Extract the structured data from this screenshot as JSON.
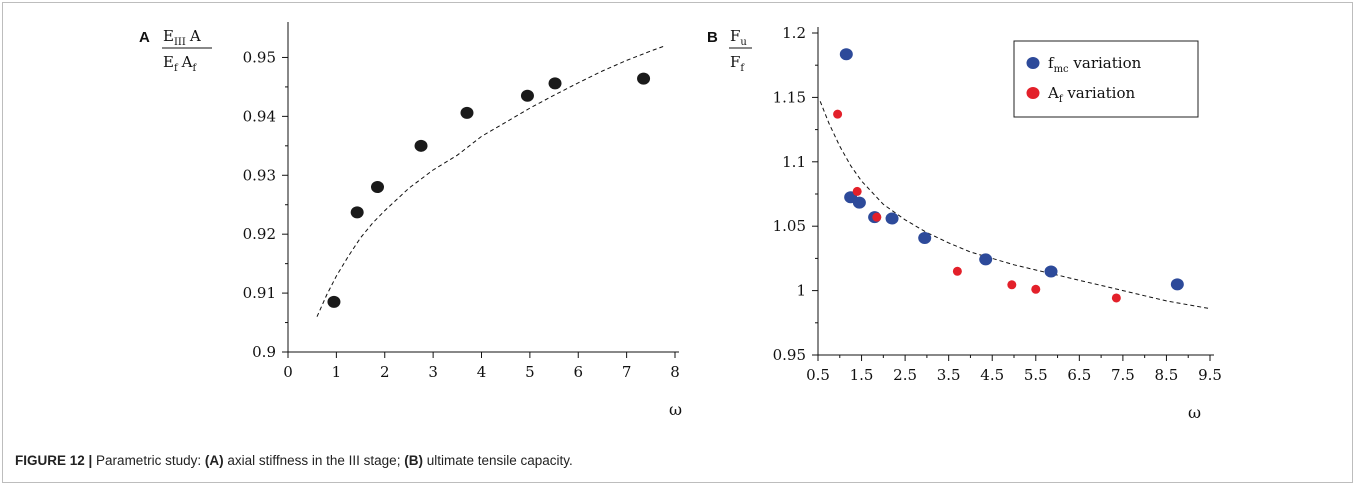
{
  "caption": {
    "label": "FIGURE 12 |",
    "intro": " Parametric study: ",
    "part_a_tag": "(A)",
    "part_a_text": " axial stiffness in the III stage; ",
    "part_b_tag": "(B)",
    "part_b_text": " ultimate tensile capacity."
  },
  "colors": {
    "black_marker": "#1a1a1a",
    "blue_marker": "#2d4a9a",
    "red_marker": "#e3202a"
  },
  "chart_data": [
    {
      "panel": "A",
      "type": "scatter",
      "xlabel": "ω",
      "ylabel": {
        "num_E": "E",
        "num_E_sub": "III",
        "num_A": "A",
        "den_E": "E",
        "den_E_sub": "f",
        "den_A": "A",
        "den_A_sub": "f"
      },
      "xlim": [
        0,
        8
      ],
      "ylim": [
        0.9,
        0.955
      ],
      "x_ticks": [
        "0",
        "1",
        "2",
        "3",
        "4",
        "5",
        "6",
        "7",
        "8"
      ],
      "y_ticks": [
        "0.9",
        "0.91",
        "0.92",
        "0.93",
        "0.94",
        "0.95"
      ],
      "grid": false,
      "series": [
        {
          "points": [
            {
              "x": 0.95,
              "y": 0.9085
            },
            {
              "x": 1.43,
              "y": 0.9237
            },
            {
              "x": 1.85,
              "y": 0.928
            },
            {
              "x": 2.75,
              "y": 0.935
            },
            {
              "x": 3.7,
              "y": 0.9406
            },
            {
              "x": 4.95,
              "y": 0.9435
            },
            {
              "x": 5.52,
              "y": 0.9456
            },
            {
              "x": 7.35,
              "y": 0.9464
            }
          ]
        }
      ],
      "trend": [
        {
          "x": 0.6,
          "y": 0.906
        },
        {
          "x": 0.8,
          "y": 0.9097
        },
        {
          "x": 1.0,
          "y": 0.9129
        },
        {
          "x": 1.25,
          "y": 0.9163
        },
        {
          "x": 1.5,
          "y": 0.9194
        },
        {
          "x": 1.75,
          "y": 0.9219
        },
        {
          "x": 2.0,
          "y": 0.924
        },
        {
          "x": 2.5,
          "y": 0.9278
        },
        {
          "x": 3.0,
          "y": 0.9309
        },
        {
          "x": 3.5,
          "y": 0.9334
        },
        {
          "x": 4.0,
          "y": 0.9366
        },
        {
          "x": 4.5,
          "y": 0.939
        },
        {
          "x": 5.0,
          "y": 0.9414
        },
        {
          "x": 5.5,
          "y": 0.9436
        },
        {
          "x": 6.0,
          "y": 0.9457
        },
        {
          "x": 6.5,
          "y": 0.9477
        },
        {
          "x": 7.0,
          "y": 0.9495
        },
        {
          "x": 7.5,
          "y": 0.9511
        },
        {
          "x": 7.8,
          "y": 0.952
        }
      ]
    },
    {
      "panel": "B",
      "type": "scatter",
      "xlabel": "ω",
      "ylabel": {
        "num": "F",
        "num_sub": "u",
        "den": "F",
        "den_sub": "f"
      },
      "xlim": [
        0.5,
        9.5
      ],
      "ylim": [
        0.95,
        1.2
      ],
      "x_ticks": [
        "0.5",
        "1.5",
        "2.5",
        "3.5",
        "4.5",
        "5.5",
        "6.5",
        "7.5",
        "8.5",
        "9.5"
      ],
      "y_ticks": [
        "0.95",
        "1",
        "1.05",
        "1.1",
        "1.15",
        "1.2"
      ],
      "grid": false,
      "legend_position": "top-right",
      "series": [
        {
          "name": "f variation",
          "name_main": "f",
          "name_sub": "mc",
          "name_rest": " variation",
          "color": "#2d4a9a",
          "points": [
            {
              "x": 1.15,
              "y": 1.1835
            },
            {
              "x": 1.25,
              "y": 1.0725
            },
            {
              "x": 1.45,
              "y": 1.0683
            },
            {
              "x": 1.8,
              "y": 1.057
            },
            {
              "x": 2.2,
              "y": 1.056
            },
            {
              "x": 2.95,
              "y": 1.0408
            },
            {
              "x": 4.35,
              "y": 1.0242
            },
            {
              "x": 5.85,
              "y": 1.0148
            },
            {
              "x": 8.75,
              "y": 1.0048
            }
          ]
        },
        {
          "name": "A variation",
          "name_main": "A",
          "name_sub": "f",
          "name_rest": " variation",
          "color": "#e3202a",
          "points": [
            {
              "x": 0.95,
              "y": 1.137
            },
            {
              "x": 1.4,
              "y": 1.077
            },
            {
              "x": 1.85,
              "y": 1.057
            },
            {
              "x": 3.7,
              "y": 1.015
            },
            {
              "x": 4.95,
              "y": 1.0045
            },
            {
              "x": 5.5,
              "y": 1.001
            },
            {
              "x": 7.35,
              "y": 0.9943
            }
          ]
        }
      ],
      "trend": [
        {
          "x": 0.55,
          "y": 1.147
        },
        {
          "x": 0.75,
          "y": 1.13
        },
        {
          "x": 1.0,
          "y": 1.112
        },
        {
          "x": 1.25,
          "y": 1.097
        },
        {
          "x": 1.5,
          "y": 1.085
        },
        {
          "x": 2.0,
          "y": 1.067
        },
        {
          "x": 2.5,
          "y": 1.055
        },
        {
          "x": 3.0,
          "y": 1.045
        },
        {
          "x": 3.5,
          "y": 1.037
        },
        {
          "x": 4.0,
          "y": 1.03
        },
        {
          "x": 4.5,
          "y": 1.025
        },
        {
          "x": 5.0,
          "y": 1.02
        },
        {
          "x": 5.5,
          "y": 1.016
        },
        {
          "x": 6.0,
          "y": 1.012
        },
        {
          "x": 6.5,
          "y": 1.008
        },
        {
          "x": 7.0,
          "y": 1.004
        },
        {
          "x": 7.5,
          "y": 1.0
        },
        {
          "x": 8.0,
          "y": 0.996
        },
        {
          "x": 8.5,
          "y": 0.992
        },
        {
          "x": 9.0,
          "y": 0.989
        },
        {
          "x": 9.5,
          "y": 0.986
        }
      ]
    }
  ]
}
